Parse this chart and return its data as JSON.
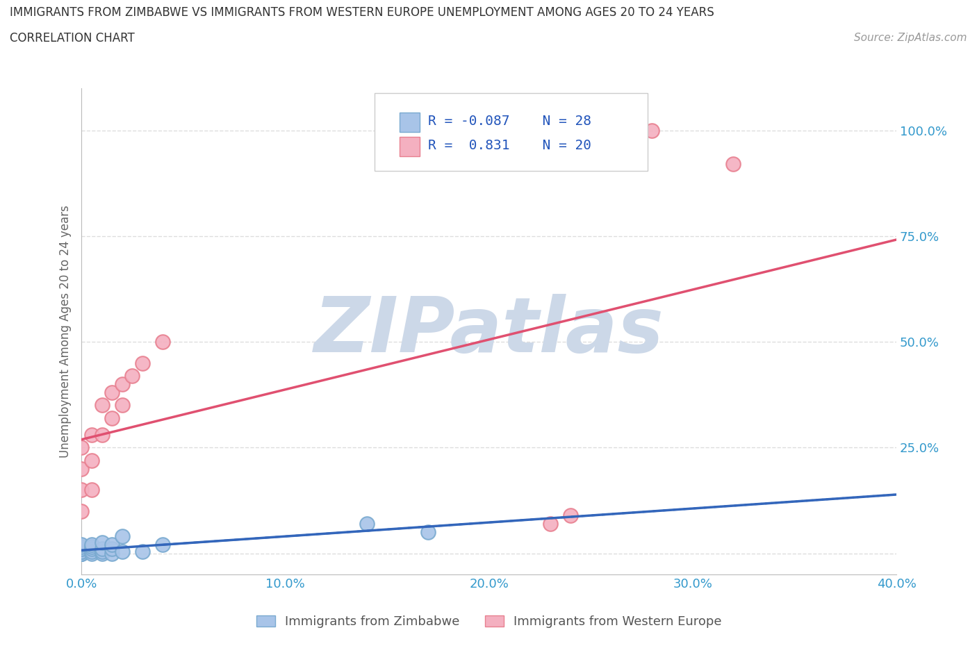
{
  "title_line1": "IMMIGRANTS FROM ZIMBABWE VS IMMIGRANTS FROM WESTERN EUROPE UNEMPLOYMENT AMONG AGES 20 TO 24 YEARS",
  "title_line2": "CORRELATION CHART",
  "source": "Source: ZipAtlas.com",
  "ylabel": "Unemployment Among Ages 20 to 24 years",
  "xlim": [
    0.0,
    0.4
  ],
  "ylim": [
    -0.05,
    1.1
  ],
  "xticks": [
    0.0,
    0.1,
    0.2,
    0.3,
    0.4
  ],
  "yticks": [
    0.0,
    0.25,
    0.5,
    0.75,
    1.0
  ],
  "xticklabels": [
    "0.0%",
    "10.0%",
    "20.0%",
    "30.0%",
    "40.0%"
  ],
  "yticklabels": [
    "",
    "25.0%",
    "50.0%",
    "75.0%",
    "100.0%"
  ],
  "zimbabwe_color": "#a8c4e8",
  "zimbabwe_edge_color": "#7aaad0",
  "western_europe_color": "#f4b0c0",
  "western_europe_edge_color": "#e88090",
  "zimbabwe_R": -0.087,
  "zimbabwe_N": 28,
  "western_europe_R": 0.831,
  "western_europe_N": 20,
  "legend_R_color": "#2255bb",
  "background_color": "#ffffff",
  "watermark": "ZIPatlas",
  "watermark_color": "#ccd8e8",
  "grid_color": "#dddddd",
  "zimbabwe_line_color": "#3366bb",
  "western_europe_line_color": "#e05070",
  "zimbabwe_x": [
    0.0,
    0.0,
    0.0,
    0.0,
    0.0,
    0.0,
    0.0,
    0.0,
    0.0,
    0.0,
    0.005,
    0.005,
    0.005,
    0.005,
    0.005,
    0.01,
    0.01,
    0.01,
    0.01,
    0.015,
    0.015,
    0.015,
    0.02,
    0.02,
    0.03,
    0.04,
    0.14,
    0.17
  ],
  "zimbabwe_y": [
    0.0,
    0.0,
    0.0,
    0.0,
    0.005,
    0.005,
    0.01,
    0.01,
    0.015,
    0.02,
    0.0,
    0.005,
    0.01,
    0.015,
    0.02,
    0.0,
    0.005,
    0.01,
    0.025,
    0.0,
    0.01,
    0.02,
    0.005,
    0.04,
    0.005,
    0.02,
    0.07,
    0.05
  ],
  "western_europe_x": [
    0.0,
    0.0,
    0.0,
    0.0,
    0.005,
    0.005,
    0.005,
    0.01,
    0.01,
    0.015,
    0.015,
    0.02,
    0.02,
    0.025,
    0.03,
    0.04,
    0.23,
    0.24,
    0.28,
    0.32
  ],
  "western_europe_y": [
    0.1,
    0.15,
    0.2,
    0.25,
    0.15,
    0.22,
    0.28,
    0.28,
    0.35,
    0.32,
    0.38,
    0.35,
    0.4,
    0.42,
    0.45,
    0.5,
    0.07,
    0.09,
    1.0,
    0.92
  ]
}
